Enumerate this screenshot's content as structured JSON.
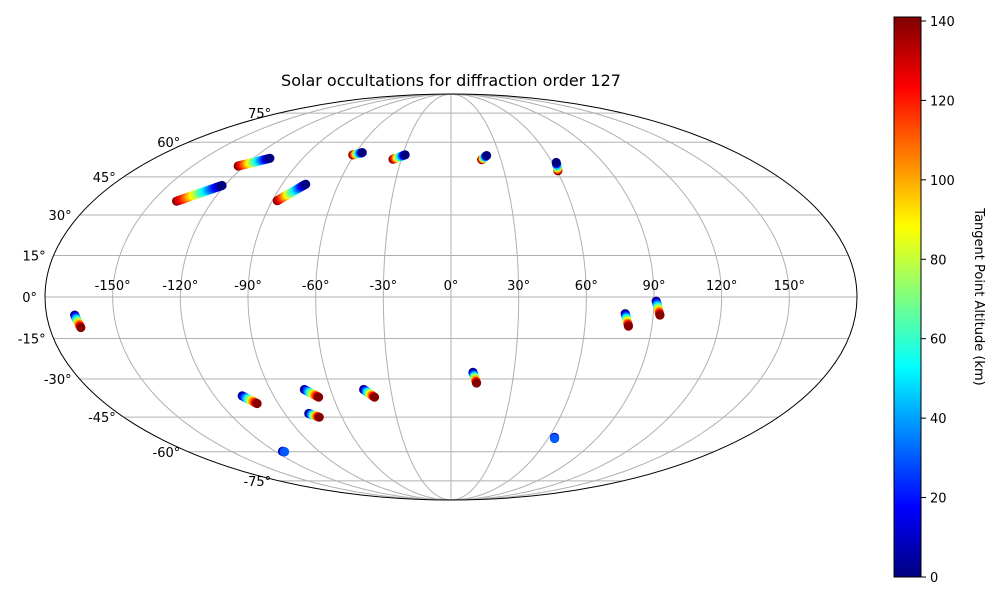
{
  "chart_data": {
    "type": "scatter",
    "projection": "mollweide",
    "title": "Solar occultations for diffraction order 127",
    "grid": true,
    "longitude_ticks": [
      "-150°",
      "-120°",
      "-90°",
      "-60°",
      "-30°",
      "0°",
      "30°",
      "60°",
      "90°",
      "120°",
      "150°"
    ],
    "latitude_ticks": [
      "75°",
      "60°",
      "45°",
      "30°",
      "15°",
      "0°",
      "-15°",
      "-30°",
      "-45°",
      "-60°",
      "-75°"
    ],
    "colorbar": {
      "label": "Tangent Point Altitude (km)",
      "range": [
        0,
        141
      ],
      "ticks": [
        "0",
        "20",
        "40",
        "60",
        "80",
        "100",
        "120",
        "140"
      ],
      "colormap": "jet",
      "colors": [
        "#00007f",
        "#0000ff",
        "#007fff",
        "#00ffff",
        "#7fff7f",
        "#ffff00",
        "#ff7f00",
        "#ff0000",
        "#7f0000"
      ]
    },
    "series": [
      {
        "lon_start": -138,
        "lat_start": 35.3,
        "lon_end": -121.5,
        "lat_end": 41.5,
        "alt_start": 140,
        "alt_end": 0
      },
      {
        "lon_start": -123.5,
        "lat_start": 49.5,
        "lon_end": -110,
        "lat_end": 52.8,
        "alt_start": 140,
        "alt_end": 0
      },
      {
        "lon_start": -87.5,
        "lat_start": 35.5,
        "lon_end": -77.5,
        "lat_end": 42,
        "alt_start": 140,
        "alt_end": 0
      },
      {
        "lon_start": -61,
        "lat_start": 54.3,
        "lon_end": -56,
        "lat_end": 55.3,
        "alt_start": 140,
        "alt_end": 0
      },
      {
        "lon_start": -35,
        "lat_start": 52.4,
        "lon_end": -28.5,
        "lat_end": 54.3,
        "alt_start": 140,
        "alt_end": 0
      },
      {
        "lon_start": 18.5,
        "lat_start": 52.2,
        "lon_end": 22,
        "lat_end": 54,
        "alt_start": 140,
        "alt_end": 0
      },
      {
        "lon_start": 60.5,
        "lat_start": 47.5,
        "lon_end": 62.3,
        "lat_end": 51,
        "alt_start": 140,
        "alt_end": 0
      },
      {
        "lon_start": -167.5,
        "lat_start": -6.5,
        "lon_end": -166,
        "lat_end": -11,
        "alt_start": 0,
        "alt_end": 140
      },
      {
        "lon_start": 77.5,
        "lat_start": -6,
        "lon_end": 79.5,
        "lat_end": -10.5,
        "alt_start": 0,
        "alt_end": 140
      },
      {
        "lon_start": 91,
        "lat_start": -1.5,
        "lon_end": 93,
        "lat_end": -6.5,
        "alt_start": 0,
        "alt_end": 140
      },
      {
        "lon_start": -106,
        "lat_start": -36.5,
        "lon_end": -101,
        "lat_end": -39.5,
        "alt_start": 0,
        "alt_end": 140
      },
      {
        "lon_start": -73,
        "lat_start": -34,
        "lon_end": -67.5,
        "lat_end": -37,
        "alt_start": 0,
        "alt_end": 140
      },
      {
        "lon_start": -77,
        "lat_start": -43.5,
        "lon_end": -72.5,
        "lat_end": -45,
        "alt_start": 0,
        "alt_end": 140
      },
      {
        "lon_start": -43.5,
        "lat_start": -34,
        "lon_end": -39,
        "lat_end": -37,
        "alt_start": 0,
        "alt_end": 140
      },
      {
        "lon_start": 10.5,
        "lat_start": -27.5,
        "lon_end": 12.5,
        "lat_end": -31.5,
        "alt_start": 0,
        "alt_end": 140
      },
      {
        "lon_start": -115,
        "lat_start": -59.8,
        "lon_end": -114,
        "lat_end": -60,
        "alt_start": 0,
        "alt_end": 30
      },
      {
        "lon_start": 63.5,
        "lat_start": -53.5,
        "lon_end": 64,
        "lat_end": -54,
        "alt_start": 0,
        "alt_end": 30
      }
    ]
  }
}
